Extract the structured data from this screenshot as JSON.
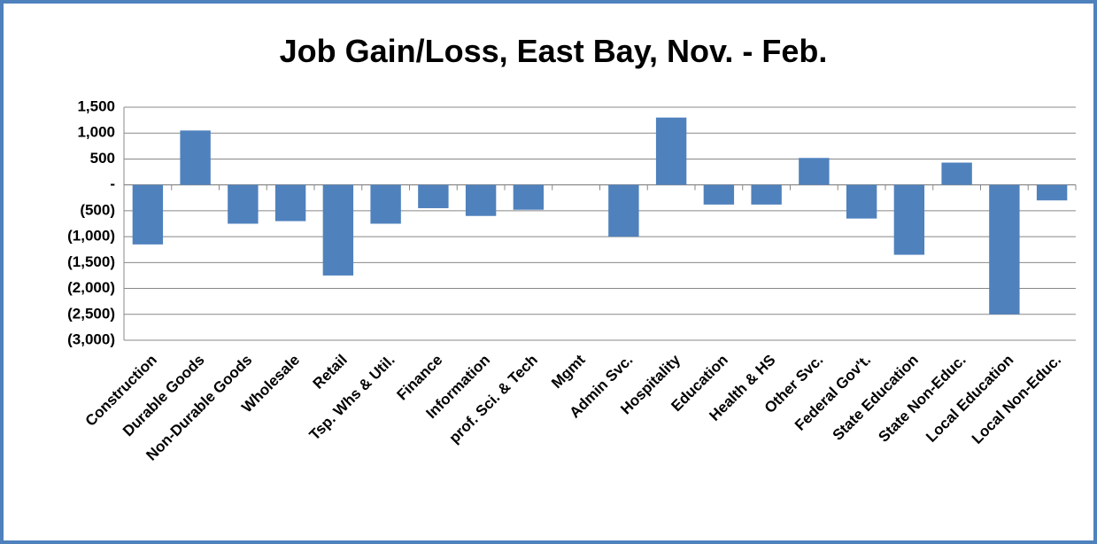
{
  "chart_data": {
    "type": "bar",
    "title": "Job Gain/Loss, East Bay, Nov. - Feb.",
    "categories": [
      "Construction",
      "Durable Goods",
      "Non-Durable Goods",
      "Wholesale",
      "Retail",
      "Tsp. Whs & Util.",
      "Finance",
      "Information",
      "prof. Sci. & Tech",
      "Mgmt",
      "Admin Svc.",
      "Hospitality",
      "Education",
      "Health & HS",
      "Other Svc.",
      "Federal Gov't.",
      "State Education",
      "State Non-Educ.",
      "Local Education",
      "Local Non-Educ."
    ],
    "values": [
      -1150,
      1050,
      -750,
      -700,
      -1750,
      -750,
      -450,
      -600,
      -480,
      0,
      -1000,
      1300,
      -380,
      -380,
      520,
      -650,
      -1350,
      430,
      -2500,
      -300
    ],
    "color": "#4f81bd",
    "ylim": [
      -3000,
      1500
    ],
    "yticks": [
      {
        "value": -3000,
        "label": "(3,000)"
      },
      {
        "value": -2500,
        "label": "(2,500)"
      },
      {
        "value": -2000,
        "label": "(2,000)"
      },
      {
        "value": -1500,
        "label": "(1,500)"
      },
      {
        "value": -1000,
        "label": "(1,000)"
      },
      {
        "value": -500,
        "label": "(500)"
      },
      {
        "value": 0,
        "label": "-"
      },
      500,
      {
        "value": 1000,
        "label": "1,000"
      },
      {
        "value": 1500,
        "label": "1,500"
      }
    ],
    "grid": true
  }
}
